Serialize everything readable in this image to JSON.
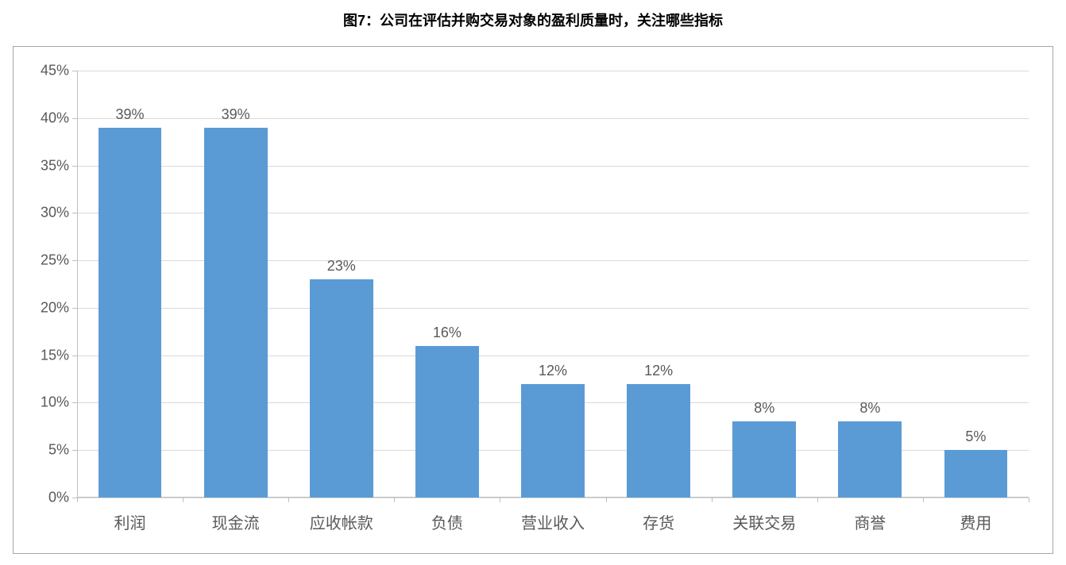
{
  "title": "图7：公司在评估并购交易对象的盈利质量时，关注哪些指标",
  "chart": {
    "type": "bar",
    "categories": [
      "利润",
      "现金流",
      "应收帐款",
      "负债",
      "营业收入",
      "存货",
      "关联交易",
      "商誉",
      "费用"
    ],
    "values": [
      39,
      39,
      23,
      16,
      12,
      12,
      8,
      8,
      5
    ],
    "data_labels": [
      "39%",
      "39%",
      "23%",
      "16%",
      "12%",
      "12%",
      "8%",
      "8%",
      "5%"
    ],
    "bar_color": "#5b9bd5",
    "ylim": [
      0,
      45
    ],
    "ytick_step": 5,
    "ytick_labels": [
      "0%",
      "5%",
      "10%",
      "15%",
      "20%",
      "25%",
      "30%",
      "35%",
      "40%",
      "45%"
    ],
    "ytick_values": [
      0,
      5,
      10,
      15,
      20,
      25,
      30,
      35,
      40,
      45
    ],
    "grid_color": "#d9d9d9",
    "axis_color": "#bfbfbf",
    "background_color": "#ffffff",
    "border_color": "#a6a6a6",
    "title_fontsize": 18,
    "label_fontsize": 18,
    "xlabel_fontsize": 20,
    "label_color": "#595959",
    "bar_width": 0.6
  }
}
